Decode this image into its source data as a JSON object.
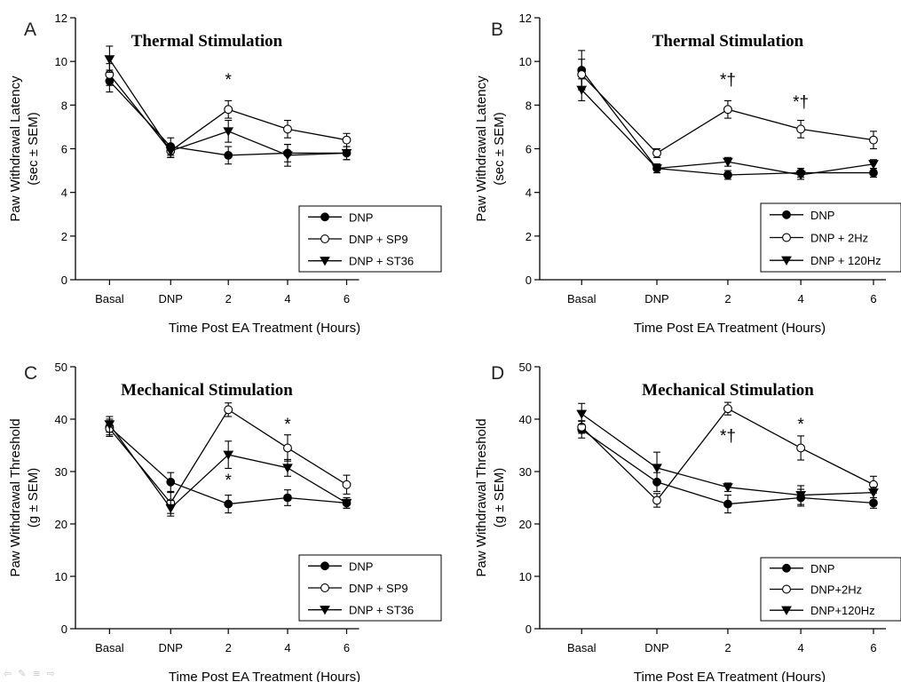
{
  "chart_data": [
    {
      "panel_label": "A",
      "type": "line",
      "title": "Thermal Stimulation",
      "xlabel": "Time Post EA Treatment (Hours)",
      "ylabel": "Paw Withdrawal Latency",
      "ylabel2": "(sec ± SEM)",
      "categories": [
        "Basal",
        "DNP",
        "2",
        "4",
        "6"
      ],
      "ylim": [
        0,
        12
      ],
      "yticks": [
        0,
        2,
        4,
        6,
        8,
        10,
        12
      ],
      "legend_position": "bottom-right",
      "series": [
        {
          "name": "DNP",
          "marker": "filled-circle",
          "values": [
            9.1,
            6.1,
            5.7,
            5.8,
            5.8
          ],
          "errors": [
            0.5,
            0.4,
            0.4,
            0.4,
            0.3
          ]
        },
        {
          "name": "DNP + SP9",
          "marker": "open-circle",
          "values": [
            9.4,
            5.9,
            7.8,
            6.9,
            6.4
          ],
          "errors": [
            0.5,
            0.3,
            0.4,
            0.4,
            0.3
          ]
        },
        {
          "name": "DNP + ST36",
          "marker": "filled-triangle",
          "values": [
            10.1,
            5.9,
            6.8,
            5.7,
            5.8
          ],
          "errors": [
            0.6,
            0.3,
            0.5,
            0.5,
            0.3
          ]
        }
      ],
      "annotations": [
        {
          "text": "*",
          "x": "2",
          "y": 8.9
        }
      ]
    },
    {
      "panel_label": "B",
      "type": "line",
      "title": "Thermal Stimulation",
      "xlabel": "Time Post EA Treatment (Hours)",
      "ylabel": "Paw Withdrawal Latency",
      "ylabel2": "(sec ± SEM)",
      "categories": [
        "Basal",
        "DNP",
        "2",
        "4",
        "6"
      ],
      "ylim": [
        0,
        12
      ],
      "yticks": [
        0,
        2,
        4,
        6,
        8,
        10,
        12
      ],
      "legend_position": "bottom-right",
      "series": [
        {
          "name": "DNP",
          "marker": "filled-circle",
          "values": [
            9.6,
            5.1,
            4.8,
            4.9,
            4.9
          ],
          "errors": [
            0.9,
            0.2,
            0.2,
            0.2,
            0.2
          ]
        },
        {
          "name": "DNP + 2Hz",
          "marker": "open-circle",
          "values": [
            9.4,
            5.8,
            7.8,
            6.9,
            6.4
          ],
          "errors": [
            0.7,
            0.2,
            0.4,
            0.4,
            0.4
          ]
        },
        {
          "name": "DNP + 120Hz",
          "marker": "filled-triangle",
          "values": [
            8.7,
            5.1,
            5.4,
            4.8,
            5.3
          ],
          "errors": [
            0.5,
            0.2,
            0.2,
            0.2,
            0.2
          ]
        }
      ],
      "annotations": [
        {
          "text": "*†",
          "x": "2",
          "y": 8.9
        },
        {
          "text": "*†",
          "x": "4",
          "y": 7.9
        }
      ]
    },
    {
      "panel_label": "C",
      "type": "line",
      "title": "Mechanical Stimulation",
      "xlabel": "Time Post EA Treatment (Hours)",
      "ylabel": "Paw Withdrawal Threshold",
      "ylabel2": "(g ± SEM)",
      "categories": [
        "Basal",
        "DNP",
        "2",
        "4",
        "6"
      ],
      "ylim": [
        0,
        50
      ],
      "yticks": [
        0,
        10,
        20,
        30,
        40,
        50
      ],
      "legend_position": "bottom-right",
      "series": [
        {
          "name": "DNP",
          "marker": "filled-circle",
          "values": [
            38.5,
            28.0,
            23.8,
            25.0,
            24.0
          ],
          "errors": [
            1.5,
            1.8,
            1.7,
            1.5,
            1.0
          ]
        },
        {
          "name": "DNP + SP9",
          "marker": "open-circle",
          "values": [
            38.2,
            24.0,
            41.8,
            34.5,
            27.5
          ],
          "errors": [
            1.5,
            2.0,
            1.3,
            2.5,
            1.8
          ]
        },
        {
          "name": "DNP + ST36",
          "marker": "filled-triangle",
          "values": [
            39.0,
            23.0,
            33.2,
            30.7,
            24.0
          ],
          "errors": [
            1.5,
            1.5,
            2.6,
            1.6,
            1.0
          ]
        }
      ],
      "annotations": [
        {
          "text": "*",
          "x": "2",
          "y": 27.3
        },
        {
          "text": "*",
          "x": "4",
          "y": 38.0
        }
      ]
    },
    {
      "panel_label": "D",
      "type": "line",
      "title": "Mechanical Stimulation",
      "xlabel": "Time Post EA Treatment (Hours)",
      "ylabel": "Paw Withdrawal Threshold",
      "ylabel2": "(g ± SEM)",
      "categories": [
        "Basal",
        "DNP",
        "2",
        "4",
        "6"
      ],
      "ylim": [
        0,
        50
      ],
      "yticks": [
        0,
        10,
        20,
        30,
        40,
        50
      ],
      "legend_position": "bottom-right",
      "series": [
        {
          "name": "DNP",
          "marker": "filled-circle",
          "values": [
            38.0,
            28.0,
            23.8,
            25.0,
            24.0
          ],
          "errors": [
            1.6,
            1.8,
            1.7,
            1.6,
            1.0
          ]
        },
        {
          "name": "DNP+2Hz",
          "marker": "open-circle",
          "values": [
            38.5,
            24.5,
            42.0,
            34.5,
            27.5
          ],
          "errors": [
            1.2,
            1.3,
            1.2,
            2.3,
            1.6
          ]
        },
        {
          "name": "DNP+120Hz",
          "marker": "filled-triangle",
          "values": [
            41.0,
            30.7,
            27.0,
            25.5,
            26.0
          ],
          "errors": [
            2.0,
            3.0,
            0.8,
            1.8,
            1.0
          ]
        }
      ],
      "annotations": [
        {
          "text": "*†",
          "x": "2",
          "y": 35.8
        },
        {
          "text": "*",
          "x": "4",
          "y": 38.0
        }
      ]
    }
  ],
  "navigation": {
    "icons": [
      "nav-previous-icon",
      "pen-icon",
      "menu-icon",
      "nav-next-icon"
    ],
    "glyphs": [
      "⇦",
      "✎",
      "≡",
      "⇨"
    ]
  }
}
